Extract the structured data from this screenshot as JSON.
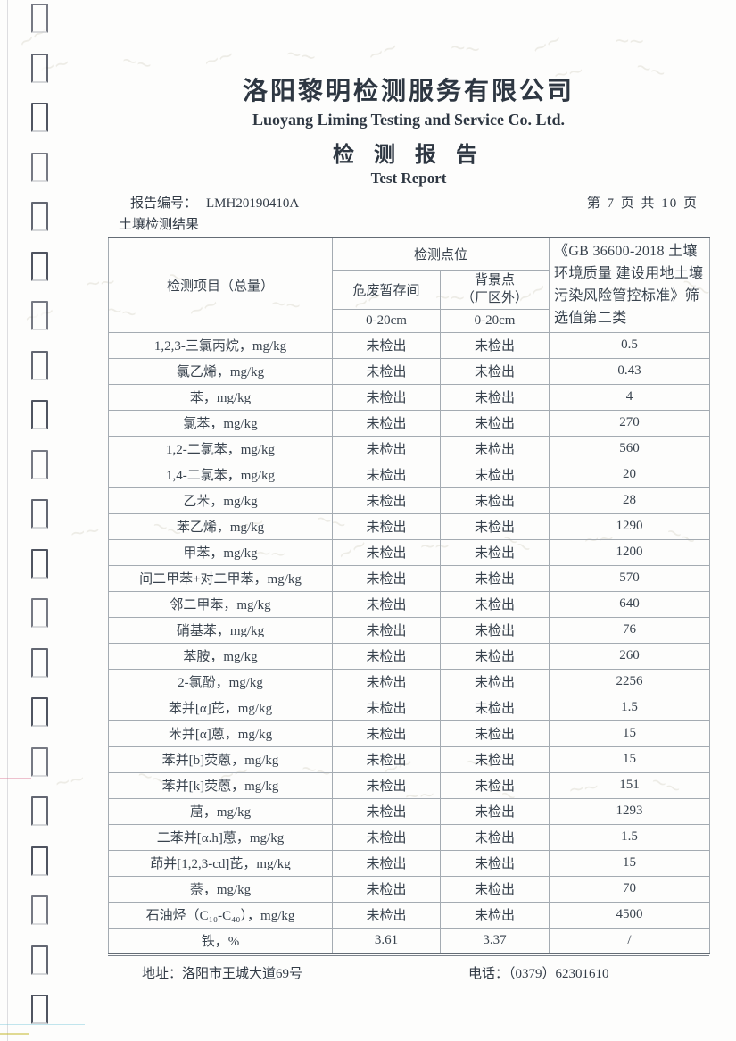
{
  "page": {
    "company_cn": "洛阳黎明检测服务有限公司",
    "company_en": "Luoyang Liming Testing and Service Co. Ltd.",
    "title_cn": "检 测 报 告",
    "title_en": "Test Report",
    "report_no_label": "报告编号：",
    "report_no": "LMH20190410A",
    "page_info": "第 7 页 共 10 页",
    "section_title": "土壤检测结果"
  },
  "table": {
    "header": {
      "col_item": "检测项目（总量）",
      "col_points_group": "检测点位",
      "col_point1": "危废暂存间",
      "col_point2": "背景点\n（厂区外）",
      "depth1": "0-20cm",
      "depth2": "0-20cm",
      "col_standard": "《GB 36600-2018 土壤环境质量 建设用地土壤污染风险管控标准》筛选值第二类"
    },
    "rows": [
      {
        "item": "1,2,3-三氯丙烷，mg/kg",
        "v1": "未检出",
        "v2": "未检出",
        "std": "0.5"
      },
      {
        "item": "氯乙烯，mg/kg",
        "v1": "未检出",
        "v2": "未检出",
        "std": "0.43"
      },
      {
        "item": "苯，mg/kg",
        "v1": "未检出",
        "v2": "未检出",
        "std": "4"
      },
      {
        "item": "氯苯，mg/kg",
        "v1": "未检出",
        "v2": "未检出",
        "std": "270"
      },
      {
        "item": "1,2-二氯苯，mg/kg",
        "v1": "未检出",
        "v2": "未检出",
        "std": "560"
      },
      {
        "item": "1,4-二氯苯，mg/kg",
        "v1": "未检出",
        "v2": "未检出",
        "std": "20"
      },
      {
        "item": "乙苯，mg/kg",
        "v1": "未检出",
        "v2": "未检出",
        "std": "28"
      },
      {
        "item": "苯乙烯，mg/kg",
        "v1": "未检出",
        "v2": "未检出",
        "std": "1290"
      },
      {
        "item": "甲苯，mg/kg",
        "v1": "未检出",
        "v2": "未检出",
        "std": "1200"
      },
      {
        "item": "间二甲苯+对二甲苯，mg/kg",
        "v1": "未检出",
        "v2": "未检出",
        "std": "570"
      },
      {
        "item": "邻二甲苯，mg/kg",
        "v1": "未检出",
        "v2": "未检出",
        "std": "640"
      },
      {
        "item": "硝基苯，mg/kg",
        "v1": "未检出",
        "v2": "未检出",
        "std": "76"
      },
      {
        "item": "苯胺，mg/kg",
        "v1": "未检出",
        "v2": "未检出",
        "std": "260"
      },
      {
        "item": "2-氯酚，mg/kg",
        "v1": "未检出",
        "v2": "未检出",
        "std": "2256"
      },
      {
        "item": "苯并[α]芘，mg/kg",
        "v1": "未检出",
        "v2": "未检出",
        "std": "1.5"
      },
      {
        "item": "苯并[α]蒽，mg/kg",
        "v1": "未检出",
        "v2": "未检出",
        "std": "15"
      },
      {
        "item": "苯并[b]荧蒽，mg/kg",
        "v1": "未检出",
        "v2": "未检出",
        "std": "15"
      },
      {
        "item": "苯并[k]荧蒽，mg/kg",
        "v1": "未检出",
        "v2": "未检出",
        "std": "151"
      },
      {
        "item": "䓛，mg/kg",
        "v1": "未检出",
        "v2": "未检出",
        "std": "1293"
      },
      {
        "item": "二苯并[α.h]蒽，mg/kg",
        "v1": "未检出",
        "v2": "未检出",
        "std": "1.5"
      },
      {
        "item": "茚并[1,2,3-cd]芘，mg/kg",
        "v1": "未检出",
        "v2": "未检出",
        "std": "15"
      },
      {
        "item": "萘，mg/kg",
        "v1": "未检出",
        "v2": "未检出",
        "std": "70"
      },
      {
        "item": "石油烃（C₁₀-C₄₀），mg/kg",
        "v1": "未检出",
        "v2": "未检出",
        "std": "4500"
      },
      {
        "item": "铁，%",
        "v1": "3.61",
        "v2": "3.37",
        "std": "/"
      }
    ]
  },
  "footer": {
    "address_label": "地址：",
    "address": "洛阳市王城大道69号",
    "phone_label": "电话：",
    "phone": "（0379）62301610"
  }
}
